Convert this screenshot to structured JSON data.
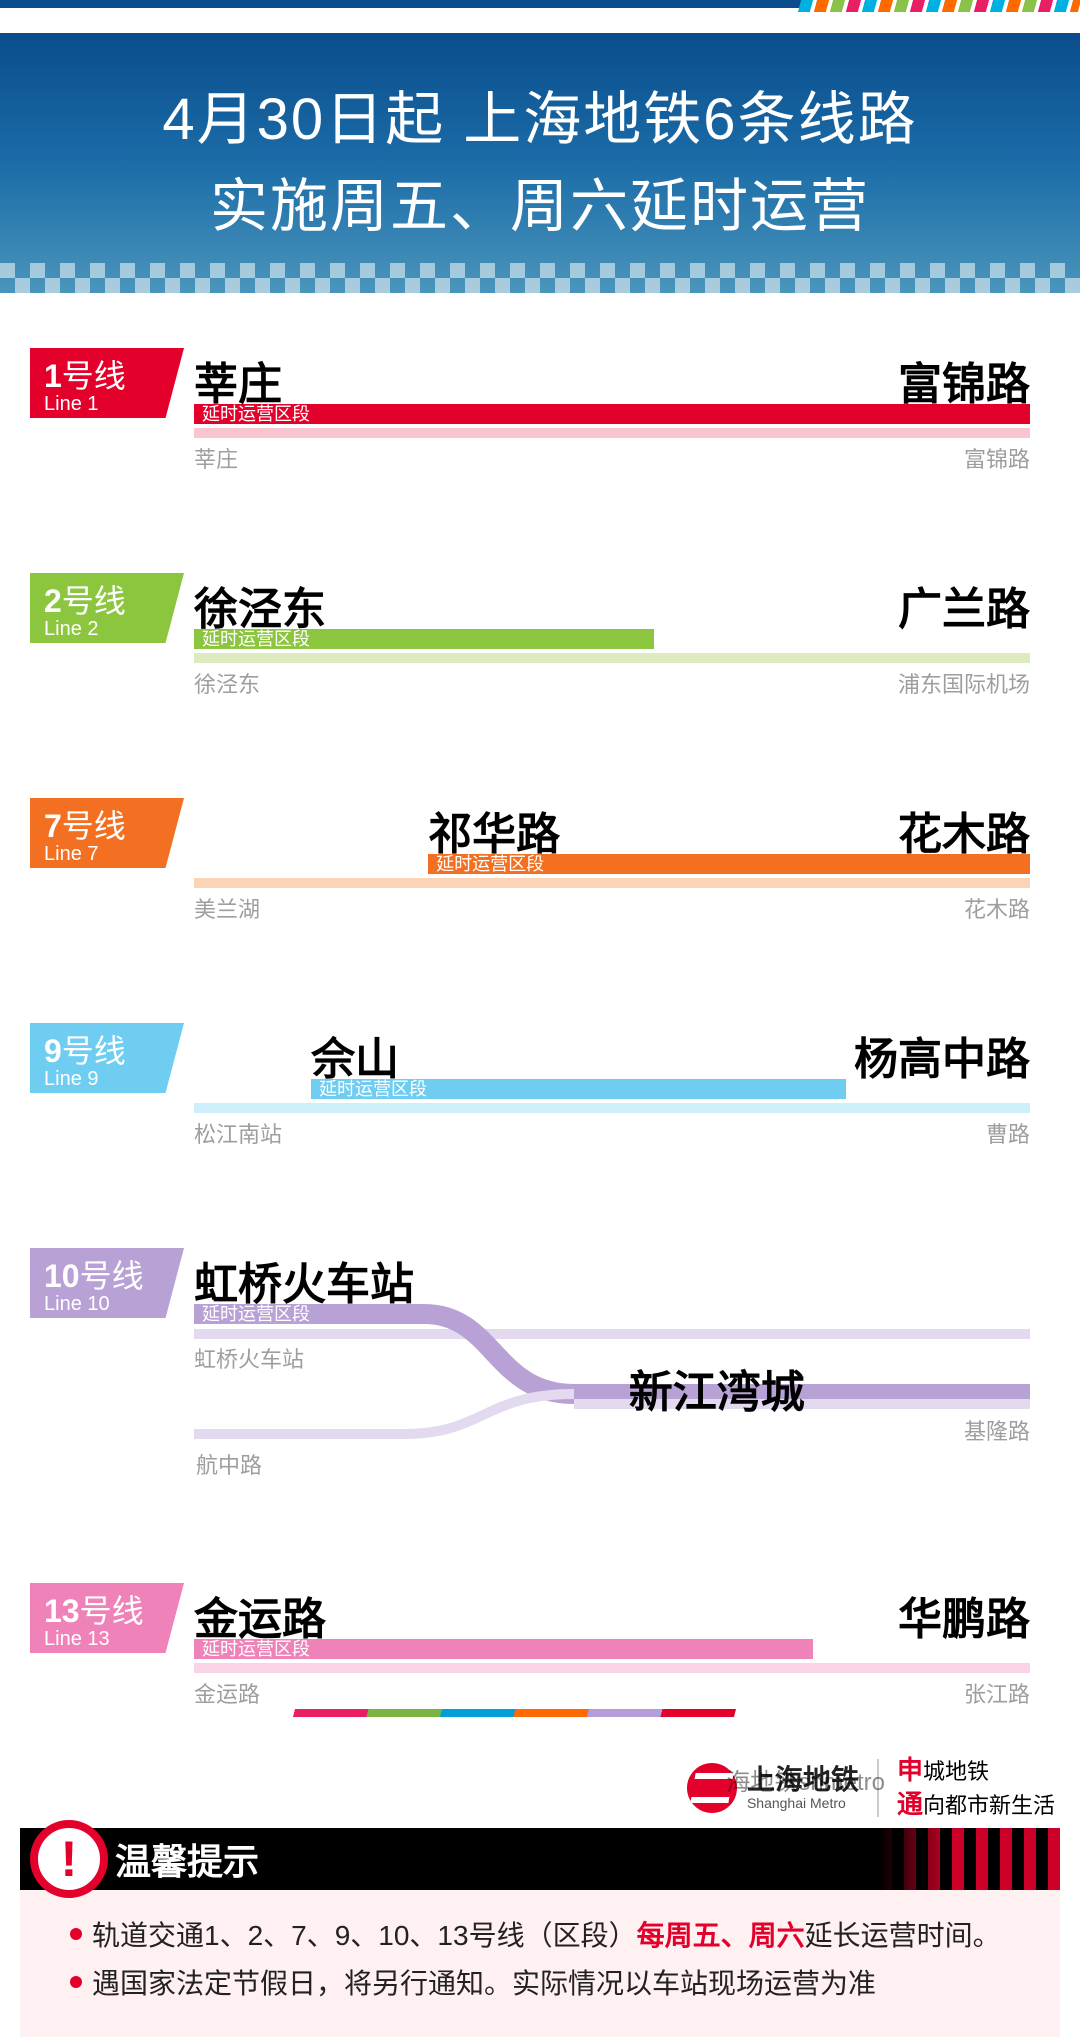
{
  "header": {
    "line1": "4月30日起  上海地铁6条线路",
    "line2": "实施周五、周六延时运营"
  },
  "segment_tag_text": "延时运营区段",
  "lines": [
    {
      "id": "1",
      "num": "1",
      "hao": "号线",
      "en": "Line 1",
      "color": "#e3002b",
      "light": "#f7c6cf",
      "ext_start_label": "莘庄",
      "ext_end_label": "富锦路",
      "full_start_label": "莘庄",
      "full_end_label": "富锦路",
      "ext_left_pct": 0,
      "ext_right_pct": 100,
      "end_label_pos_pct": 100,
      "end_align": "right"
    },
    {
      "id": "2",
      "num": "2",
      "hao": "号线",
      "en": "Line 2",
      "color": "#8cc63f",
      "light": "#dcecc0",
      "ext_start_label": "徐泾东",
      "ext_end_label": "广兰路",
      "full_start_label": "徐泾东",
      "full_end_label": "浦东国际机场",
      "ext_left_pct": 0,
      "ext_right_pct": 55,
      "end_label_pos_pct": 55,
      "end_align": "right"
    },
    {
      "id": "7",
      "num": "7",
      "hao": "号线",
      "en": "Line 7",
      "color": "#f36f21",
      "light": "#fbd3b6",
      "ext_start_label": "祁华路",
      "ext_end_label": "花木路",
      "full_start_label": "美兰湖",
      "full_end_label": "花木路",
      "ext_left_pct": 28,
      "ext_right_pct": 100,
      "start_label_pos_pct": 28,
      "end_label_pos_pct": 100,
      "end_align": "right"
    },
    {
      "id": "9",
      "num": "9",
      "hao": "号线",
      "en": "Line 9",
      "color": "#6ecdf1",
      "light": "#cdeefa",
      "ext_start_label": "佘山",
      "ext_end_label": "杨高中路",
      "full_start_label": "松江南站",
      "full_end_label": "曹路",
      "ext_left_pct": 14,
      "ext_right_pct": 78,
      "start_label_pos_pct": 14,
      "end_label_pos_pct": 78,
      "end_align": "right"
    },
    {
      "id": "10",
      "num": "10",
      "hao": "号线",
      "en": "Line 10",
      "color": "#b8a1d4",
      "light": "#e4daf0",
      "ext_start_label": "虹桥火车站",
      "ext_end_label": "新江湾城",
      "full_start_label": "虹桥火车站",
      "full_end_label": "基隆路",
      "branch2_start_label": "航中路",
      "ext_left_pct": 0,
      "ext_right_pct": 100,
      "dest_label_pos_pct": 52,
      "is_branching": true
    },
    {
      "id": "13",
      "num": "13",
      "hao": "号线",
      "en": "Line 13",
      "color": "#ef82b8",
      "light": "#f9d4e6",
      "ext_start_label": "金运路",
      "ext_end_label": "华鹏路",
      "full_start_label": "金运路",
      "full_end_label": "张江路",
      "ext_left_pct": 0,
      "ext_right_pct": 74,
      "end_label_pos_pct": 74,
      "end_align": "right"
    }
  ],
  "notice": {
    "title": "温馨提示",
    "items": [
      {
        "pre": "轨道交通1、2、7、9、10、13号线（区段）",
        "hl": "每周五、周六",
        "post": "延长运营时间。"
      },
      {
        "pre": "遇国家法定节假日，将另行通知。实际情况以车站现场运营为准",
        "hl": "",
        "post": ""
      }
    ]
  },
  "footer": {
    "brand_cn": "上海地铁",
    "brand_en": "Shanghai Metro",
    "tag1_bold": "申",
    "tag1_rest": "城地铁",
    "tag2_bold": "通",
    "tag2_rest": "向都市新生活",
    "watermark": "海地铁shmetro"
  }
}
